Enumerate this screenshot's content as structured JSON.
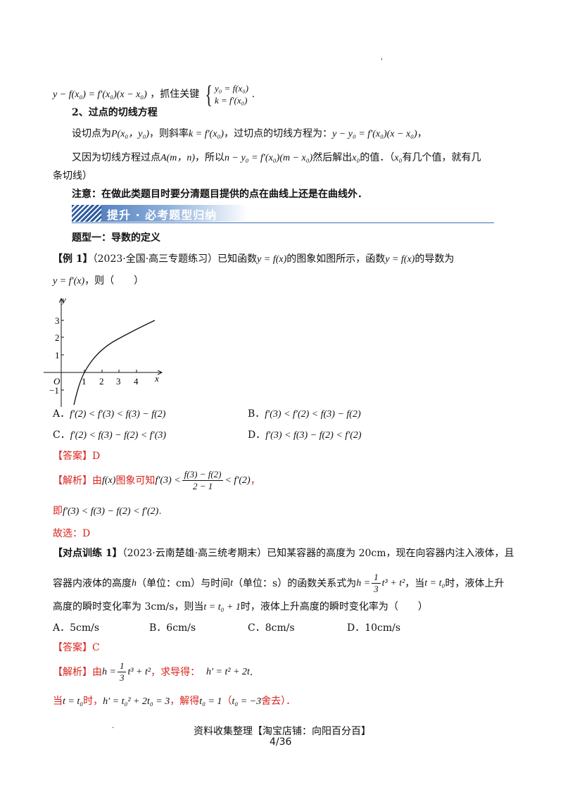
{
  "header_mark": "'",
  "line1": {
    "formula": "y − f(x₀) = f′(x₀)(x − x₀)",
    "text": "，抓住关键",
    "sys_a": "y₀ = f(x₀)",
    "sys_b": "k = f′(x₀)",
    "end": "."
  },
  "sec2_title": "2、过点的切线方程",
  "line3": {
    "a": "设切点为",
    "b": "P(x₀，y₀)",
    "c": "，则斜率",
    "d": "k = f′(x₀)",
    "e": "，过切点的切线方程为：",
    "f": "y − y₀ = f′(x₀)(x − x₀)",
    "g": "，"
  },
  "line4": {
    "a": "又因为切线方程过点",
    "b": "A(m，n)",
    "c": "，所以",
    "d": "n − y₀ = f′(x₀)(m − x₀)",
    "e": "然后解出",
    "f": "x₀",
    "g": "的值．（",
    "h": "x₀",
    "i": "有几个值，就有几"
  },
  "line5": "条切线）",
  "note": "注意：在做此类题目时要分清题目提供的点在曲线上还是在曲线外．",
  "banner": "提升 · 必考题型归纳",
  "type1_title": "题型一：导数的定义",
  "ex1": {
    "tag": "【例 1】",
    "text_a": "（2023·全国·高三专题练习）已知函数",
    "f1": "y = f(x)",
    "text_b": "的图象如图所示，函数",
    "f2": "y = f(x)",
    "text_c": "的导数为",
    "f3": "y = f′(x)",
    "text_d": "，则（　　）"
  },
  "graph": {
    "y_label": "y",
    "x_label": "x",
    "origin": "O",
    "x_ticks": [
      "1",
      "2",
      "3",
      "4"
    ],
    "y_ticks": [
      "3",
      "2",
      "1",
      "−1"
    ]
  },
  "options1": {
    "A": {
      "label": "A．",
      "expr": "f′(2) < f′(3) < f(3) − f(2)"
    },
    "B": {
      "label": "B．",
      "expr": "f′(3) < f′(2) < f(3) − f(2)"
    },
    "C": {
      "label": "C．",
      "expr": "f′(2) < f(3) − f(2) < f′(3)"
    },
    "D": {
      "label": "D．",
      "expr": "f′(3) < f(3) − f(2) < f′(2)"
    }
  },
  "answer1": {
    "tag": "【答案】",
    "value": "D"
  },
  "analysis1": {
    "tag": "【解析】",
    "a": "由",
    "b": "f(x)",
    "c": "图象可知",
    "d": "f′(3) <",
    "num": "f(3) − f(2)",
    "den": "2 − 1",
    "e": "< f′(2)",
    "f": "，"
  },
  "analysis1_line2": {
    "a": "即",
    "b": "f′(3) < f(3) − f(2) < f′(2)",
    "c": "."
  },
  "choose1": "故选：D",
  "train1": {
    "tag": "【对点训练 1】",
    "a": "（2023·云南楚雄·高三统考期末）已知某容器的高度为 20cm，现在向容器内注入液体，且",
    "b": "容器内液体的高度",
    "c": "h",
    "d": "（单位：cm）与时间",
    "e": "t",
    "f": "（单位：s）的函数关系式为",
    "g1": "h =",
    "gnum": "1",
    "gden": "3",
    "g2": "t³ + t²",
    "h": "，当",
    "i": "t = t₀",
    "j": "时，液体上升",
    "k": "高度的瞬时变化率为 3cm/s，则当",
    "l": "t = t₀ + 1",
    "m": "时，液体上升高度的瞬时变化率为（　　）"
  },
  "options2": {
    "A": "A．5cm/s",
    "B": "B．6cm/s",
    "C": "C．8cm/s",
    "D": "D．10cm/s"
  },
  "answer2": {
    "tag": "【答案】",
    "value": "C"
  },
  "analysis2": {
    "tag": "【解析】",
    "a": "由",
    "b1": "h =",
    "bnum": "1",
    "bden": "3",
    "b2": "t³ + t²",
    "c": "，求导得：",
    "d": "h′ = t² + 2t",
    "e": "."
  },
  "analysis2_line2": {
    "a": "当",
    "b": "t = t₀",
    "c": "时，",
    "d": "h′ = t₀² + 2t₀ = 3",
    "e": "，解得",
    "f": "t₀ = 1",
    "g": "（",
    "h": "t₀ = −3",
    "i": "舍去）．"
  },
  "footer": {
    "shop": "资料收集整理【淘宝店铺：向阳百分百】",
    "page": "4/36",
    "dot": "."
  },
  "colors": {
    "red": "#d8231c",
    "banner": "#3f6fb3"
  }
}
